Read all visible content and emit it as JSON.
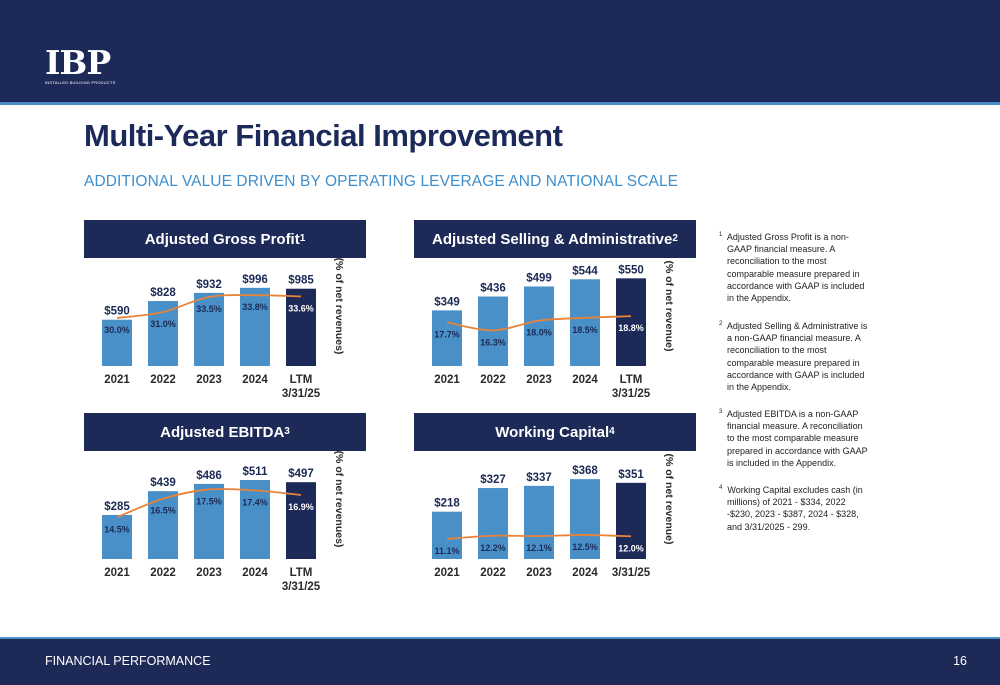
{
  "header": {
    "logo": {
      "mark": "IBP",
      "subtext": "INSTALLED BUILDING PRODUCTS"
    }
  },
  "page": {
    "title": "Multi-Year Financial Improvement",
    "subtitle": "ADDITIONAL VALUE DRIVEN BY OPERATING LEVERAGE AND NATIONAL SCALE"
  },
  "colors": {
    "navy": "#1d2a57",
    "bar_blue": "#4a90c8",
    "bar_dark": "#1d2a57",
    "line_orange": "#e8833a",
    "accent_blue": "#3d8fcd"
  },
  "chart_data": [
    {
      "id": "gross-profit",
      "type": "bar",
      "title": "Adjusted Gross Profit",
      "title_sup": "1",
      "categories": [
        "2021",
        "2022",
        "2023",
        "2024",
        "LTM\n3/31/25"
      ],
      "values": [
        590,
        828,
        932,
        996,
        985
      ],
      "value_labels": [
        "$590",
        "$828",
        "$932",
        "$996",
        "$985"
      ],
      "line_series": {
        "values": [
          30.0,
          31.0,
          33.5,
          33.8,
          33.6
        ],
        "labels": [
          "30.0%",
          "31.0%",
          "33.5%",
          "33.8%",
          "33.6%"
        ],
        "axis_label": "(% of net revenues)"
      },
      "ylim": [
        0,
        1300
      ],
      "line_ylim": [
        22,
        39
      ],
      "highlight_last": true
    },
    {
      "id": "selling-admin",
      "type": "bar",
      "title": "Adjusted Selling & Administrative",
      "title_sup": "2",
      "categories": [
        "2021",
        "2022",
        "2023",
        "2024",
        "LTM\n3/31/25"
      ],
      "values": [
        349,
        436,
        499,
        544,
        550
      ],
      "value_labels": [
        "$349",
        "$436",
        "$499",
        "$544",
        "$550"
      ],
      "line_series": {
        "values": [
          17.7,
          16.3,
          18.0,
          18.5,
          18.8
        ],
        "labels": [
          "17.7%",
          "16.3%",
          "18.0%",
          "18.5%",
          "18.8%"
        ],
        "axis_label": "(% of net revenue)"
      },
      "ylim": [
        0,
        640
      ],
      "line_ylim": [
        10,
        28
      ],
      "highlight_last": true
    },
    {
      "id": "ebitda",
      "type": "bar",
      "title": "Adjusted EBITDA",
      "title_sup": "3",
      "categories": [
        "2021",
        "2022",
        "2023",
        "2024",
        "LTM\n3/31/25"
      ],
      "values": [
        285,
        439,
        486,
        511,
        497
      ],
      "value_labels": [
        "$285",
        "$439",
        "$486",
        "$511",
        "$497"
      ],
      "line_series": {
        "values": [
          14.5,
          16.5,
          17.5,
          17.4,
          16.9
        ],
        "labels": [
          "14.5%",
          "16.5%",
          "17.5%",
          "17.4%",
          "16.9%"
        ],
        "axis_label": "(% of net revenues)"
      },
      "ylim": [
        0,
        660
      ],
      "line_ylim": [
        10,
        21
      ],
      "highlight_last": true
    },
    {
      "id": "working-capital",
      "type": "bar",
      "title": "Working Capital",
      "title_sup": "4",
      "categories": [
        "2021",
        "2022",
        "2023",
        "2024",
        "3/31/25"
      ],
      "values": [
        218,
        327,
        337,
        368,
        351
      ],
      "value_labels": [
        "$218",
        "$327",
        "$337",
        "$368",
        "$351"
      ],
      "line_series": {
        "values": [
          11.1,
          12.2,
          12.1,
          12.5,
          12.0
        ],
        "labels": [
          "11.1%",
          "12.2%",
          "12.1%",
          "12.5%",
          "12.0%"
        ],
        "axis_label": "(% of net revenue)"
      },
      "ylim": [
        0,
        470
      ],
      "line_ylim": [
        4,
        40
      ],
      "highlight_last": true
    }
  ],
  "footnotes": [
    {
      "num": "1",
      "text": "Adjusted Gross Profit is a non-GAAP financial measure. A reconciliation to the most comparable measure prepared in accordance with GAAP is included in the Appendix."
    },
    {
      "num": "2",
      "text": "Adjusted Selling & Administrative is a non-GAAP financial measure. A reconciliation to the most comparable measure prepared in accordance with GAAP is included in the Appendix."
    },
    {
      "num": "3",
      "text": "Adjusted EBITDA is a non-GAAP financial measure.  A reconciliation to the most comparable measure prepared in accordance with GAAP is included in the Appendix."
    },
    {
      "num": "4",
      "text": "Working Capital excludes cash (in millions) of 2021 - $334, 2022 -$230, 2023 - $387, 2024 - $328, and 3/31/2025 - 299."
    }
  ],
  "footer": {
    "label": "FINANCIAL PERFORMANCE",
    "page_number": "16"
  }
}
